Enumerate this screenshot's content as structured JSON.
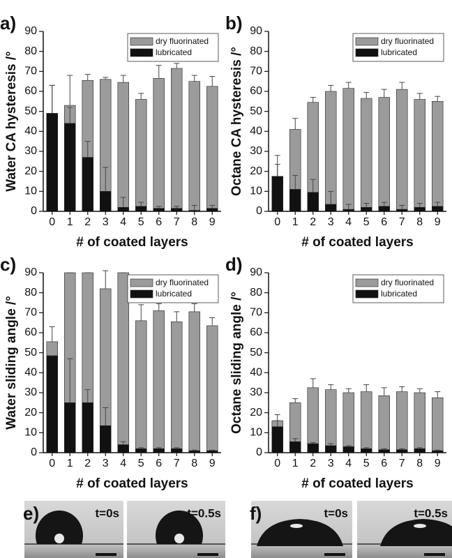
{
  "chart_data": [
    {
      "type": "bar",
      "panel_label": "a)",
      "ylabel": "Water CA hysteresis /°",
      "xlabel": "# of coated layers",
      "categories": [
        "0",
        "1",
        "2",
        "3",
        "4",
        "5",
        "6",
        "7",
        "8",
        "9"
      ],
      "ylim": [
        0,
        90
      ],
      "yticks": [
        0,
        10,
        20,
        30,
        40,
        50,
        60,
        70,
        80,
        90
      ],
      "legend": "upper right",
      "series": [
        {
          "name": "dry fluorinated",
          "color": "#9b9b9b",
          "values": [
            49,
            53,
            65.5,
            66,
            64.5,
            56,
            66.5,
            71.5,
            65,
            62.5
          ],
          "errors": [
            14,
            15,
            3,
            1,
            3.5,
            3,
            6.5,
            2.5,
            3,
            5
          ]
        },
        {
          "name": "lubricated",
          "color": "#111111",
          "values": [
            49,
            44,
            27,
            10,
            2,
            2.5,
            1.5,
            1.5,
            0.5,
            1.5
          ],
          "errors": [
            14,
            8,
            8,
            12,
            5,
            2,
            1,
            1,
            2.5,
            1.5
          ]
        }
      ]
    },
    {
      "type": "bar",
      "panel_label": "b)",
      "ylabel": "Octane CA hysteresis /°",
      "xlabel": "# of coated layers",
      "categories": [
        "0",
        "1",
        "2",
        "3",
        "4",
        "5",
        "6",
        "7",
        "8",
        "9"
      ],
      "ylim": [
        0,
        90
      ],
      "yticks": [
        0,
        10,
        20,
        30,
        40,
        50,
        60,
        70,
        80,
        90
      ],
      "legend": "upper right",
      "series": [
        {
          "name": "dry fluorinated",
          "color": "#9b9b9b",
          "values": [
            17.5,
            41,
            54.5,
            60,
            61.5,
            56.5,
            57,
            61,
            56,
            55
          ],
          "errors": [
            10.5,
            5.5,
            2.5,
            3,
            3,
            3,
            4,
            3.5,
            3,
            2.5
          ]
        },
        {
          "name": "lubricated",
          "color": "#111111",
          "values": [
            17.5,
            11,
            9.5,
            3.5,
            1,
            2,
            2.5,
            1,
            2,
            2.5
          ],
          "errors": [
            6,
            7,
            6.5,
            6.5,
            2.5,
            2,
            2,
            2,
            2,
            2
          ]
        }
      ]
    },
    {
      "type": "bar",
      "panel_label": "c)",
      "ylabel": "Water sliding angle /°",
      "xlabel": "# of coated layers",
      "categories": [
        "0",
        "1",
        "2",
        "3",
        "4",
        "5",
        "6",
        "7",
        "8",
        "9"
      ],
      "ylim": [
        0,
        90
      ],
      "yticks": [
        0,
        10,
        20,
        30,
        40,
        50,
        60,
        70,
        80,
        90
      ],
      "legend": "upper right",
      "series": [
        {
          "name": "dry fluorinated",
          "color": "#9b9b9b",
          "values": [
            55.5,
            90,
            90,
            82,
            90,
            66,
            71,
            65.5,
            70.5,
            63.5
          ],
          "errors": [
            7.5,
            0,
            0,
            9,
            0,
            8,
            3.5,
            5,
            4,
            4
          ]
        },
        {
          "name": "lubricated",
          "color": "#111111",
          "values": [
            48.5,
            25,
            25,
            13.5,
            4,
            2,
            2,
            2,
            1,
            1
          ],
          "errors": [
            0,
            22,
            6.5,
            9,
            1.5,
            0.5,
            0.5,
            0.5,
            0.3,
            0.3
          ]
        }
      ]
    },
    {
      "type": "bar",
      "panel_label": "d)",
      "ylabel": "Octane sliding angle /°",
      "xlabel": "# of coated layers",
      "categories": [
        "0",
        "1",
        "2",
        "3",
        "4",
        "5",
        "6",
        "7",
        "8",
        "9"
      ],
      "ylim": [
        0,
        90
      ],
      "yticks": [
        0,
        10,
        20,
        30,
        40,
        50,
        60,
        70,
        80,
        90
      ],
      "legend": "upper right",
      "series": [
        {
          "name": "dry fluorinated",
          "color": "#9b9b9b",
          "values": [
            16,
            25,
            32.5,
            31.5,
            30,
            30.5,
            28.5,
            30.5,
            30,
            27.5
          ],
          "errors": [
            3,
            2,
            4.5,
            2.5,
            2,
            3.5,
            4,
            2.5,
            2,
            3
          ]
        },
        {
          "name": "lubricated",
          "color": "#111111",
          "values": [
            13,
            5.5,
            4.5,
            3.5,
            3,
            2,
            1.5,
            1.5,
            2,
            1
          ],
          "errors": [
            3,
            1.5,
            0.5,
            1,
            0.5,
            0.5,
            0.5,
            0.5,
            0.5,
            0.3
          ]
        }
      ]
    }
  ],
  "photos": [
    {
      "label": "e)",
      "frames": [
        {
          "time": "t=0s"
        },
        {
          "time": "t=0.5s"
        }
      ]
    },
    {
      "label": "f)",
      "frames": [
        {
          "time": "t=0s"
        },
        {
          "time": "t=0.5s"
        }
      ]
    }
  ]
}
